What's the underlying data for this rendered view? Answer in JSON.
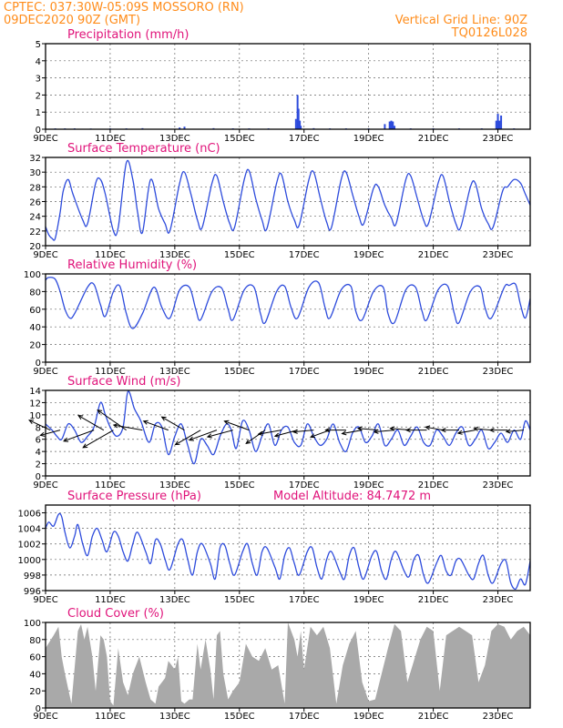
{
  "header": {
    "left_line1": "CPTEC:   037:30W-05:09S   MOSSORO (RN)",
    "left_line2": "09DEC2020 90Z (GMT)",
    "right_line1": "Vertical Grid Line: 90Z",
    "right_line2": "TQ0126L028"
  },
  "colors": {
    "header": "#ff8c1a",
    "title": "#e0137a",
    "line": "#2d4bdc",
    "cloud": "#a9a9a9",
    "arrow": "#000000"
  },
  "x_axis": {
    "ticks": [
      "9DEC",
      "11DEC",
      "13DEC",
      "15DEC",
      "17DEC",
      "19DEC",
      "21DEC",
      "23DEC"
    ],
    "range_days": [
      0,
      15
    ]
  },
  "chart_data": [
    {
      "type": "bar",
      "title": "Precipitation (mm/h)",
      "ylim": [
        0,
        5
      ],
      "yticks": [
        0,
        1,
        2,
        3,
        4,
        5
      ],
      "x_days": [
        0.3,
        0.6,
        0.9,
        1.4,
        2.0,
        2.5,
        3.0,
        4.15,
        4.3,
        5.2,
        5.8,
        6.3,
        6.9,
        7.75,
        7.8,
        7.83,
        7.87,
        7.9,
        8.3,
        8.8,
        9.3,
        10.0,
        10.5,
        10.65,
        10.7,
        10.75,
        10.8,
        11.3,
        12.0,
        12.8,
        13.5,
        13.95,
        14.0,
        14.05,
        14.1,
        14.5
      ],
      "values": [
        0.05,
        0.05,
        0.05,
        0.04,
        0.05,
        0.05,
        0.06,
        0.1,
        0.15,
        0.06,
        0.05,
        0.05,
        0.05,
        0.6,
        2.0,
        1.2,
        0.5,
        0.2,
        0.06,
        0.05,
        0.05,
        0.05,
        0.3,
        0.45,
        0.5,
        0.45,
        0.2,
        0.05,
        0.05,
        0.05,
        0.05,
        0.5,
        0.9,
        0.5,
        0.8,
        0.05
      ]
    },
    {
      "type": "line",
      "title": "Surface Temperature (nC)",
      "ylim": [
        20,
        32
      ],
      "yticks": [
        20,
        22,
        24,
        26,
        28,
        30,
        32
      ],
      "x_days": [
        0,
        0.1,
        0.2,
        0.3,
        0.45,
        0.55,
        0.7,
        0.85,
        1.15,
        1.3,
        1.55,
        1.7,
        1.85,
        2.1,
        2.25,
        2.5,
        2.7,
        2.85,
        3.0,
        3.25,
        3.5,
        3.7,
        3.85,
        4.15,
        4.3,
        4.5,
        4.7,
        4.85,
        5.15,
        5.3,
        5.5,
        5.7,
        5.85,
        6.15,
        6.3,
        6.5,
        6.7,
        6.85,
        7.15,
        7.3,
        7.5,
        7.7,
        7.85,
        8.15,
        8.3,
        8.5,
        8.7,
        8.85,
        9.15,
        9.3,
        9.5,
        9.7,
        9.85,
        10.15,
        10.3,
        10.5,
        10.7,
        10.85,
        11.15,
        11.3,
        11.5,
        11.7,
        11.85,
        12.15,
        12.3,
        12.5,
        12.7,
        12.85,
        13.15,
        13.3,
        13.5,
        13.7,
        13.85,
        14.15,
        14.3,
        14.5,
        14.7,
        14.85,
        15.0
      ],
      "values": [
        22.6,
        21.5,
        21.0,
        21.0,
        24.5,
        27.5,
        29.0,
        27.0,
        23.5,
        23.0,
        28.5,
        29.0,
        27.0,
        22.0,
        22.5,
        31.3,
        29.0,
        24.5,
        21.8,
        29.0,
        25.0,
        23.0,
        22.0,
        28.5,
        30.0,
        27.0,
        23.5,
        22.5,
        28.5,
        29.5,
        26.0,
        23.0,
        22.5,
        29.0,
        30.2,
        26.5,
        23.5,
        22.3,
        28.5,
        29.7,
        26.0,
        23.5,
        22.8,
        29.0,
        30.0,
        26.5,
        23.2,
        22.5,
        29.0,
        30.0,
        27.0,
        24.0,
        23.0,
        27.8,
        28.0,
        25.5,
        23.8,
        23.0,
        29.0,
        29.5,
        26.5,
        23.5,
        23.0,
        28.5,
        29.5,
        26.0,
        23.0,
        22.5,
        28.0,
        28.5,
        25.0,
        23.0,
        22.5,
        27.5,
        28.0,
        29.0,
        28.5,
        27.0,
        25.5
      ]
    },
    {
      "type": "line",
      "title": "Relative Humidity (%)",
      "ylim": [
        0,
        100
      ],
      "yticks": [
        0,
        20,
        40,
        60,
        80,
        100
      ],
      "x_days": [
        0,
        0.1,
        0.3,
        0.45,
        0.6,
        0.75,
        0.9,
        1.3,
        1.5,
        1.7,
        1.85,
        2.1,
        2.3,
        2.5,
        2.7,
        3.0,
        3.35,
        3.6,
        3.85,
        4.15,
        4.45,
        4.65,
        4.8,
        5.15,
        5.45,
        5.65,
        5.8,
        6.15,
        6.45,
        6.65,
        6.8,
        7.15,
        7.4,
        7.6,
        7.8,
        8.15,
        8.45,
        8.65,
        8.8,
        9.15,
        9.45,
        9.6,
        9.8,
        10.15,
        10.45,
        10.6,
        10.8,
        11.15,
        11.45,
        11.65,
        11.8,
        12.15,
        12.45,
        12.65,
        12.8,
        13.15,
        13.45,
        13.6,
        13.8,
        14.2,
        14.35,
        14.55,
        14.7,
        14.85,
        15.0
      ],
      "values": [
        93,
        96,
        94,
        80,
        60,
        50,
        55,
        85,
        88,
        65,
        52,
        80,
        86,
        55,
        38,
        55,
        85,
        62,
        50,
        82,
        85,
        60,
        48,
        80,
        84,
        60,
        48,
        82,
        85,
        55,
        45,
        80,
        86,
        62,
        50,
        85,
        90,
        62,
        50,
        82,
        86,
        58,
        48,
        80,
        85,
        55,
        45,
        82,
        85,
        58,
        48,
        82,
        86,
        55,
        45,
        80,
        85,
        62,
        50,
        85,
        87,
        88,
        65,
        50,
        72
      ]
    },
    {
      "type": "line",
      "title": "Surface Wind (m/s)",
      "ylim": [
        0,
        14
      ],
      "yticks": [
        0,
        2,
        4,
        6,
        8,
        10,
        12,
        14
      ],
      "x_days": [
        0,
        0.2,
        0.35,
        0.5,
        0.7,
        0.9,
        1.1,
        1.3,
        1.5,
        1.7,
        1.85,
        2.0,
        2.2,
        2.4,
        2.55,
        2.75,
        2.95,
        3.2,
        3.4,
        3.6,
        3.8,
        4.0,
        4.2,
        4.4,
        4.6,
        4.8,
        5.0,
        5.2,
        5.4,
        5.6,
        5.75,
        5.9,
        6.1,
        6.3,
        6.5,
        6.7,
        6.9,
        7.1,
        7.3,
        7.5,
        7.7,
        7.9,
        8.1,
        8.3,
        8.5,
        8.7,
        8.9,
        9.1,
        9.3,
        9.5,
        9.7,
        9.9,
        10.1,
        10.3,
        10.5,
        10.7,
        10.9,
        11.1,
        11.3,
        11.5,
        11.7,
        11.9,
        12.1,
        12.3,
        12.5,
        12.7,
        12.9,
        13.1,
        13.3,
        13.5,
        13.7,
        13.9,
        14.1,
        14.3,
        14.5,
        14.7,
        14.85,
        15.0
      ],
      "values": [
        8.5,
        7.5,
        6.5,
        6.0,
        8.5,
        7.5,
        5.5,
        6.5,
        8.0,
        12.0,
        10.0,
        8.0,
        6.5,
        8.0,
        13.8,
        11.0,
        9.0,
        5.5,
        8.5,
        8.0,
        3.5,
        6.5,
        8.5,
        5.0,
        2.0,
        6.0,
        5.0,
        3.5,
        6.5,
        8.5,
        7.5,
        4.5,
        9.0,
        7.5,
        4.0,
        6.5,
        8.5,
        5.0,
        7.5,
        8.0,
        5.5,
        5.0,
        8.5,
        6.5,
        5.0,
        6.0,
        8.5,
        5.5,
        4.0,
        7.0,
        8.0,
        5.5,
        6.5,
        8.5,
        5.0,
        6.0,
        7.5,
        5.0,
        6.5,
        8.0,
        5.5,
        5.0,
        7.5,
        6.5,
        5.0,
        7.0,
        8.0,
        5.0,
        6.0,
        7.5,
        4.5,
        5.5,
        7.0,
        5.5,
        7.5,
        6.0,
        9.0,
        7.5
      ],
      "arrows": {
        "x_days": [
          0.15,
          0.45,
          1.5,
          1.8,
          2.1,
          2.5,
          3.0,
          3.8,
          4.3,
          4.8,
          5.3,
          5.8,
          6.3,
          6.8,
          7.3,
          7.8,
          8.3,
          8.8,
          9.3,
          9.8,
          10.3,
          10.8,
          11.3,
          11.8,
          12.3,
          12.8,
          13.3,
          13.8,
          14.3,
          14.8
        ],
        "speeds": [
          8,
          7,
          11,
          10,
          12,
          12,
          10,
          9,
          9,
          10,
          10,
          9,
          9,
          8,
          8,
          8,
          7,
          7,
          7,
          7,
          7,
          7,
          7,
          7,
          6,
          6,
          6,
          6,
          6,
          6
        ],
        "dir_deg": [
          155,
          195,
          200,
          150,
          210,
          145,
          170,
          160,
          150,
          210,
          200,
          195,
          160,
          215,
          190,
          195,
          185,
          200,
          180,
          190,
          175,
          185,
          175,
          180,
          170,
          180,
          190,
          175,
          180,
          185
        ]
      }
    },
    {
      "type": "line",
      "title": "Surface Pressure (hPa)",
      "subtitle": "Model Altitude: 84.7472 m",
      "ylim": [
        996,
        1007
      ],
      "yticks": [
        996,
        998,
        1000,
        1002,
        1004,
        1006
      ],
      "x_days": [
        0,
        0.1,
        0.25,
        0.4,
        0.5,
        0.6,
        0.75,
        0.9,
        1.0,
        1.15,
        1.3,
        1.45,
        1.6,
        1.75,
        1.9,
        2.1,
        2.25,
        2.4,
        2.55,
        2.7,
        2.85,
        3.1,
        3.25,
        3.4,
        3.55,
        3.7,
        3.85,
        4.1,
        4.25,
        4.4,
        4.55,
        4.7,
        4.85,
        5.1,
        5.25,
        5.4,
        5.55,
        5.7,
        5.85,
        6.1,
        6.25,
        6.4,
        6.55,
        6.7,
        6.85,
        7.1,
        7.25,
        7.4,
        7.55,
        7.7,
        7.85,
        8.1,
        8.25,
        8.4,
        8.55,
        8.7,
        8.85,
        9.1,
        9.25,
        9.4,
        9.55,
        9.7,
        9.85,
        10.1,
        10.25,
        10.4,
        10.55,
        10.7,
        10.85,
        11.1,
        11.25,
        11.4,
        11.55,
        11.7,
        11.85,
        12.1,
        12.25,
        12.4,
        12.55,
        12.7,
        12.85,
        13.1,
        13.25,
        13.4,
        13.55,
        13.7,
        13.85,
        14.1,
        14.25,
        14.4,
        14.55,
        14.7,
        14.85,
        15.0
      ],
      "values": [
        1004.0,
        1004.8,
        1004.3,
        1005.8,
        1005.5,
        1003.5,
        1001.5,
        1003.0,
        1004.5,
        1002.0,
        1000.5,
        1003.0,
        1004.0,
        1002.5,
        1001.0,
        1003.5,
        1003.0,
        1001.0,
        999.8,
        1002.0,
        1003.5,
        1001.0,
        999.5,
        1002.5,
        1002.0,
        1000.0,
        998.7,
        1002.0,
        1002.5,
        1000.0,
        998.0,
        1001.0,
        1002.0,
        999.5,
        997.5,
        1001.5,
        1001.8,
        999.5,
        998.0,
        1001.0,
        1002.0,
        999.5,
        998.0,
        1001.0,
        1001.5,
        999.0,
        997.5,
        1000.5,
        1001.5,
        999.5,
        998.0,
        1001.0,
        1001.5,
        999.0,
        997.5,
        1000.0,
        1001.0,
        998.5,
        997.5,
        1000.5,
        1001.5,
        999.0,
        997.5,
        1000.5,
        1001.0,
        998.5,
        997.5,
        1000.0,
        1001.0,
        998.5,
        997.8,
        1000.0,
        1000.5,
        998.0,
        997.0,
        999.5,
        1000.5,
        998.5,
        998.0,
        999.8,
        1000.0,
        998.0,
        997.5,
        999.5,
        1000.5,
        998.0,
        997.0,
        999.5,
        999.8,
        997.0,
        996.2,
        997.5,
        996.8,
        999.8
      ]
    },
    {
      "type": "bar",
      "title": "Cloud Cover (%)",
      "ylim": [
        0,
        100
      ],
      "yticks": [
        0,
        20,
        40,
        60,
        80,
        100
      ],
      "x_days": [
        0.0,
        0.25,
        0.4,
        0.5,
        0.6,
        0.8,
        1.0,
        1.1,
        1.2,
        1.3,
        1.45,
        1.55,
        1.7,
        1.8,
        1.9,
        2.0,
        2.1,
        2.25,
        2.4,
        2.55,
        2.7,
        2.9,
        3.1,
        3.25,
        3.4,
        3.5,
        3.7,
        3.8,
        4.0,
        4.1,
        4.2,
        4.3,
        4.45,
        4.55,
        4.7,
        4.8,
        4.95,
        5.1,
        5.2,
        5.3,
        5.4,
        5.5,
        5.65,
        5.8,
        6.0,
        6.2,
        6.4,
        6.6,
        6.8,
        7.0,
        7.2,
        7.4,
        7.5,
        7.7,
        7.8,
        7.9,
        8.0,
        8.2,
        8.4,
        8.6,
        8.8,
        9.0,
        9.2,
        9.4,
        9.6,
        9.8,
        10.0,
        10.2,
        10.4,
        10.6,
        10.8,
        11.0,
        11.2,
        11.4,
        11.6,
        11.8,
        12.0,
        12.2,
        12.4,
        12.6,
        12.8,
        13.0,
        13.2,
        13.4,
        13.6,
        13.8,
        14.0,
        14.2,
        14.4,
        14.6,
        14.8,
        15.0
      ],
      "values": [
        70,
        85,
        95,
        60,
        40,
        5,
        90,
        98,
        80,
        95,
        60,
        20,
        85,
        80,
        60,
        8,
        3,
        70,
        30,
        15,
        40,
        60,
        30,
        10,
        5,
        25,
        35,
        55,
        45,
        60,
        8,
        5,
        10,
        10,
        75,
        45,
        80,
        45,
        10,
        85,
        90,
        40,
        10,
        20,
        30,
        75,
        60,
        55,
        70,
        45,
        50,
        5,
        100,
        80,
        60,
        90,
        45,
        95,
        85,
        95,
        70,
        5,
        50,
        75,
        90,
        30,
        8,
        10,
        40,
        70,
        98,
        90,
        30,
        55,
        80,
        95,
        90,
        20,
        85,
        90,
        95,
        90,
        85,
        30,
        50,
        90,
        98,
        95,
        80,
        90,
        95,
        85
      ]
    }
  ]
}
